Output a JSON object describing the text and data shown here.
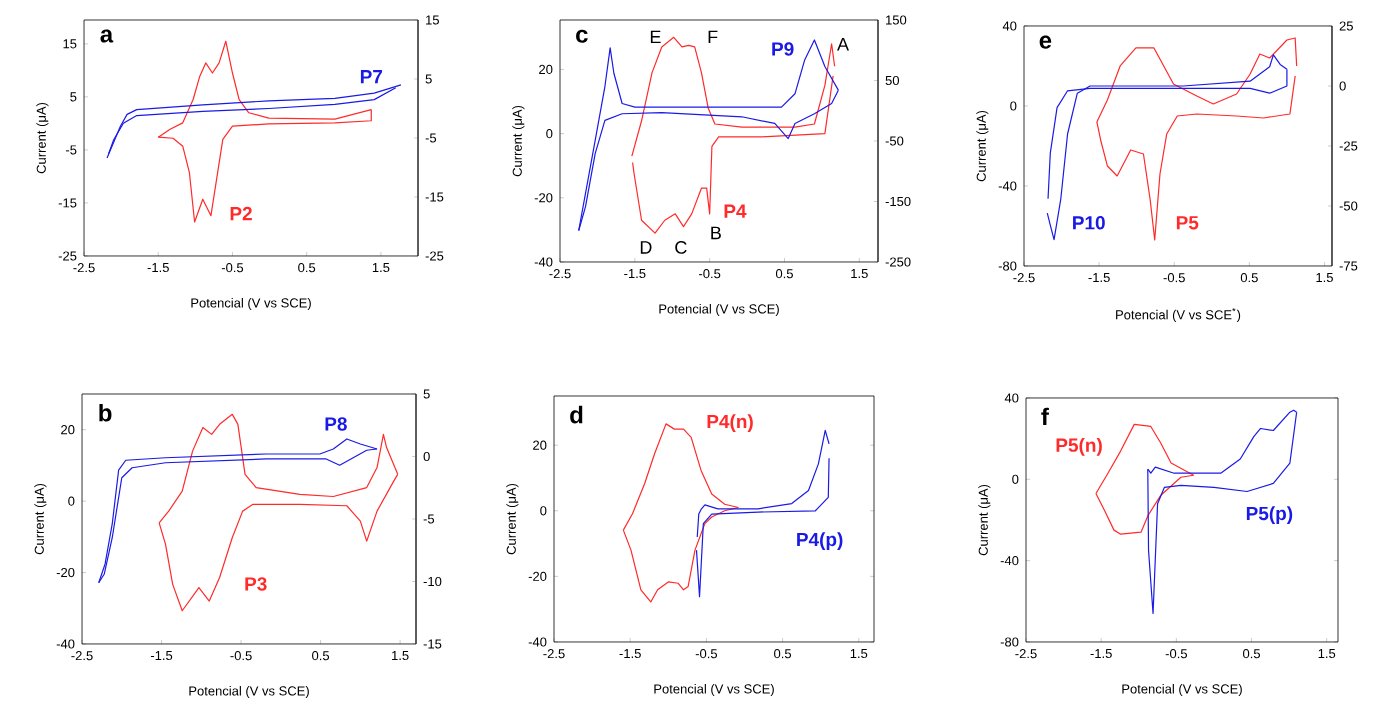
{
  "chart_data": [
    {
      "type": "line",
      "title": "a",
      "xlabel": "Potencial (V vs SCE)",
      "ylabel": "Current (μA)",
      "xlim": [
        -2.5,
        2.0
      ],
      "xticks": [
        -2.5,
        -1.5,
        -0.5,
        0.5,
        1.5
      ],
      "ylim": [
        -25,
        19.5
      ],
      "yticks": [
        -25,
        -15,
        -5,
        5,
        15
      ],
      "y2lim": [
        -25,
        15
      ],
      "y2ticks": [
        -25,
        -15,
        -5,
        5,
        15
      ],
      "series": [
        {
          "name": "P2",
          "color": "#ff2a2a",
          "x": [
            -1.5,
            -1.34,
            -1.17,
            -1.03,
            -0.94,
            -0.86,
            -0.77,
            -0.68,
            -0.59,
            -0.5,
            -0.41,
            -0.28,
            -0.01,
            0.88,
            1.37
          ],
          "values": [
            -2.6,
            -1.1,
            0.1,
            4.5,
            8.9,
            11.4,
            9.5,
            11.4,
            15.5,
            9.5,
            4.5,
            2.0,
            1.0,
            0.8,
            2.6
          ]
        },
        {
          "color": "#ff2a2a",
          "x": [
            1.37,
            1.37,
            0.88,
            -0.01,
            -0.5,
            -0.63,
            -0.7,
            -0.79,
            -0.9,
            -1.01,
            -1.08,
            -1.17,
            -1.3,
            -1.5
          ],
          "values": [
            2.6,
            0.5,
            0.1,
            -0.1,
            -0.5,
            -3,
            -9.3,
            -17.4,
            -14.3,
            -18.6,
            -9.3,
            -4.3,
            -2.8,
            -2.6
          ]
        },
        {
          "name": "P7",
          "color": "#1a1ae6",
          "axis": "y2",
          "x": [
            -2.19,
            -2.01,
            -1.92,
            -1.79,
            -0.9,
            -0.01,
            0.88,
            1.41,
            1.77
          ],
          "values": [
            -8.4,
            -3.0,
            -1.0,
            -0.2,
            0.6,
            1.3,
            1.7,
            2.6,
            4.0
          ]
        },
        {
          "color": "#1a1ae6",
          "axis": "y2",
          "x": [
            1.7,
            1.41,
            0.88,
            -0.01,
            -0.9,
            -1.79,
            -1.97,
            -2.1,
            -2.17
          ],
          "values": [
            3.5,
            1.5,
            0.7,
            0.0,
            -0.5,
            -1.2,
            -2.5,
            -5.3,
            -7.7
          ]
        }
      ]
    },
    {
      "type": "line",
      "title": "c",
      "xlabel": "Potencial (V vs SCE)",
      "ylabel": "Current (μA)",
      "xlim": [
        -2.5,
        1.75
      ],
      "xticks": [
        -2.5,
        -1.5,
        -0.5,
        0.5,
        1.5
      ],
      "ylim": [
        -40,
        35.4
      ],
      "yticks": [
        -40,
        -20,
        0,
        20
      ],
      "y2lim": [
        -250,
        150
      ],
      "y2ticks": [
        -250,
        -150,
        -50,
        50,
        150
      ],
      "annotations": [
        "A",
        "B",
        "C",
        "D",
        "E",
        "F"
      ],
      "series": [
        {
          "name": "P4",
          "color": "#ff2a2a",
          "x": [
            -1.54,
            -1.41,
            -1.27,
            -1.14,
            -0.98,
            -0.87,
            -0.78,
            -0.7,
            -0.61,
            -0.52,
            -0.43,
            -0.07,
            0.64,
            0.9,
            1.04,
            1.13,
            1.17
          ],
          "values": [
            -7,
            4,
            19,
            27,
            30,
            27,
            27.5,
            27,
            19,
            8,
            3,
            2,
            2,
            3,
            15,
            28,
            21
          ]
        },
        {
          "color": "#ff2a2a",
          "x": [
            1.15,
            1.04,
            0.19,
            -0.38,
            -0.47,
            -0.5,
            -0.54,
            -0.61,
            -0.74,
            -0.85,
            -0.96,
            -1.1,
            -1.23,
            -1.41,
            -1.51,
            -1.53
          ],
          "values": [
            18,
            0,
            -1,
            -1,
            -4,
            -25,
            -17,
            -17,
            -25,
            -29,
            -25,
            -27,
            -31,
            -27,
            -12.5,
            -9
          ]
        },
        {
          "name": "P9",
          "color": "#1a1ae6",
          "axis": "y2",
          "x": [
            -2.25,
            -2.16,
            -2.03,
            -1.9,
            -1.83,
            -1.78,
            -1.67,
            -1.5,
            -0.25,
            0.46,
            0.64,
            0.77,
            0.9,
            1.04,
            1.22
          ],
          "values": [
            -198,
            -137,
            -49,
            40,
            104,
            62,
            12,
            6,
            6,
            6,
            28,
            84,
            117,
            73,
            34
          ]
        },
        {
          "color": "#1a1ae6",
          "axis": "y2",
          "x": [
            1.22,
            1.13,
            0.9,
            0.64,
            0.55,
            0.37,
            -0.07,
            -1.14,
            -1.67,
            -1.9,
            -2.03,
            -2.16,
            -2.25
          ],
          "values": [
            34,
            12,
            -5,
            -21,
            -46,
            -21,
            -10,
            -3,
            -5,
            -16,
            -71,
            -159,
            -198
          ]
        }
      ]
    },
    {
      "type": "line",
      "title": "e",
      "xlabel": "Potencial (V vs SCE$^{*}$)",
      "ylabel": "Current (μA)",
      "xlim": [
        -2.5,
        1.6
      ],
      "xticks": [
        -2.5,
        -1.5,
        -0.5,
        0.5,
        1.5
      ],
      "ylim": [
        -80,
        40
      ],
      "yticks": [
        -80,
        -40,
        0,
        40
      ],
      "y2lim": [
        -75,
        25
      ],
      "y2ticks": [
        -75,
        -50,
        -25,
        0,
        25
      ],
      "series": [
        {
          "name": "P5",
          "color": "#ff2a2a",
          "x": [
            -1.53,
            -1.39,
            -1.22,
            -1.01,
            -0.77,
            -0.64,
            -0.51,
            -0.2,
            0.02,
            0.33,
            0.51,
            0.64,
            0.77,
            1.0,
            1.11,
            1.13
          ],
          "values": [
            -8,
            3,
            20,
            29,
            29,
            20,
            11,
            5,
            1,
            6,
            16,
            26,
            24,
            33,
            34,
            20
          ]
        },
        {
          "color": "#ff2a2a",
          "x": [
            1.11,
            1.04,
            0.69,
            0.33,
            -0.2,
            -0.46,
            -0.6,
            -0.69,
            -0.76,
            -0.82,
            -0.91,
            -1.08,
            -1.26,
            -1.39,
            -1.48,
            -1.53
          ],
          "values": [
            15,
            -4,
            -6,
            -5,
            -4,
            -5,
            -14,
            -34,
            -67,
            -47,
            -24,
            -22,
            -35,
            -30,
            -17,
            -8
          ]
        },
        {
          "name": "P10",
          "color": "#1a1ae6",
          "axis": "y2",
          "x": [
            -2.19,
            -2.15,
            -2.1,
            -2.01,
            -1.92,
            -1.79,
            -1.62,
            -0.38,
            0.51,
            0.77,
            0.82,
            0.91,
            1.0
          ],
          "values": [
            -53,
            -58,
            -64,
            -47,
            -20,
            -3,
            0,
            0,
            2,
            8,
            13,
            9,
            7
          ]
        },
        {
          "color": "#1a1ae6",
          "axis": "y2",
          "x": [
            1.0,
            1.0,
            0.77,
            0.51,
            -0.38,
            -1.62,
            -1.92,
            -2.06,
            -2.15,
            -2.18
          ],
          "values": [
            7,
            0,
            -3,
            -1,
            -1,
            -1,
            -2,
            -9,
            -28,
            -47
          ]
        }
      ]
    },
    {
      "type": "line",
      "title": "b",
      "xlabel": "Potencial (V vs SCE)",
      "ylabel": "Current (μA)",
      "xlim": [
        -2.5,
        1.7
      ],
      "xticks": [
        -2.5,
        -1.5,
        -0.5,
        0.5,
        1.5
      ],
      "ylim": [
        -40,
        30
      ],
      "yticks": [
        -40,
        -20,
        0,
        20
      ],
      "y2lim": [
        -15,
        5
      ],
      "y2ticks": [
        -15,
        -10,
        -5,
        0,
        5
      ],
      "series": [
        {
          "name": "P3",
          "color": "#ff2a2a",
          "x": [
            -1.53,
            -1.41,
            -1.24,
            -1.11,
            -0.98,
            -0.87,
            -0.77,
            -0.61,
            -0.54,
            -0.45,
            -0.31,
            0.24,
            0.66,
            1.08,
            1.21,
            1.29,
            1.33,
            1.47
          ],
          "values": [
            -6.1,
            -2.8,
            2.8,
            14,
            20.6,
            18.7,
            21.5,
            24.3,
            21.5,
            7.5,
            3.8,
            1.9,
            1.3,
            3.8,
            9.4,
            18.7,
            15,
            7.5
          ]
        },
        {
          "color": "#ff2a2a",
          "x": [
            1.47,
            1.42,
            1.21,
            1.08,
            1.0,
            0.83,
            0.24,
            -0.35,
            -0.48,
            -0.61,
            -0.77,
            -0.9,
            -1.03,
            -1.24,
            -1.36,
            -1.45,
            -1.53
          ],
          "values": [
            7.5,
            5.6,
            -2.8,
            -11.2,
            -5.6,
            -1.3,
            -0.9,
            -0.9,
            -2.8,
            -10.2,
            -21.4,
            -28,
            -24.2,
            -30.7,
            -23.3,
            -12.1,
            -6.1
          ]
        },
        {
          "name": "P8",
          "color": "#1a1ae6",
          "axis": "y2",
          "x": [
            -2.29,
            -2.21,
            -2.12,
            -2.04,
            -1.95,
            -1.45,
            -0.18,
            0.49,
            0.66,
            0.83,
            1.0,
            1.21
          ],
          "values": [
            -10.1,
            -8.6,
            -5.4,
            -1.1,
            -0.3,
            -0.1,
            0.2,
            0.2,
            0.6,
            1.4,
            1.0,
            0.6
          ]
        },
        {
          "color": "#1a1ae6",
          "axis": "y2",
          "x": [
            1.21,
            1.08,
            0.74,
            0.57,
            -0.18,
            -1.45,
            -1.87,
            -2.0,
            -2.12,
            -2.22,
            -2.29
          ],
          "values": [
            0.6,
            0.5,
            -0.7,
            -0.2,
            -0.2,
            -0.5,
            -0.9,
            -1.7,
            -6.5,
            -9.4,
            -10.1
          ]
        }
      ]
    },
    {
      "type": "line",
      "title": "d",
      "xlabel": "Potencial (V vs SCE)",
      "ylabel": "Current (μA)",
      "xlim": [
        -2.5,
        1.7
      ],
      "xticks": [
        -2.5,
        -1.5,
        -0.5,
        0.5,
        1.5
      ],
      "ylim": [
        -40,
        35
      ],
      "yticks": [
        -40,
        -20,
        0,
        20
      ],
      "series": [
        {
          "name": "P4(n)",
          "color": "#ff2a2a",
          "x": [
            -1.59,
            -1.47,
            -1.31,
            -1.18,
            -1.03,
            -0.92,
            -0.8,
            -0.7,
            -0.57,
            -0.43,
            -0.26,
            -0.08
          ],
          "values": [
            -5.9,
            -0.9,
            8.3,
            17.4,
            26.5,
            24.9,
            24.9,
            22.4,
            12.3,
            5.1,
            2.0,
            1.0
          ]
        },
        {
          "color": "#ff2a2a",
          "x": [
            -0.08,
            -0.26,
            -0.43,
            -0.52,
            -0.65,
            -0.74,
            -0.8,
            -0.87,
            -1.0,
            -1.14,
            -1.23,
            -1.36,
            -1.49,
            -1.59
          ],
          "values": [
            1.0,
            0,
            -1.9,
            -3.9,
            -12,
            -23.1,
            -24.1,
            -22.1,
            -21.7,
            -24.1,
            -27.8,
            -24.1,
            -12,
            -5.9
          ]
        },
        {
          "name": "P4(p)",
          "color": "#1a1ae6",
          "x": [
            -0.62,
            -0.6,
            -0.57,
            -0.52,
            -0.35,
            0.18,
            0.62,
            0.84,
            0.97,
            1.06,
            1.11
          ],
          "values": [
            -8,
            -1.0,
            0.4,
            1.8,
            0.6,
            0.6,
            2.2,
            6.2,
            14.3,
            24.5,
            20.4
          ]
        },
        {
          "color": "#1a1ae6",
          "x": [
            1.11,
            1.1,
            0.93,
            0.18,
            -0.43,
            -0.54,
            -0.59,
            -0.63
          ],
          "values": [
            16,
            4.1,
            0,
            -0.4,
            -1.0,
            -3.9,
            -26.2,
            -12
          ]
        }
      ]
    },
    {
      "type": "line",
      "title": "f",
      "xlabel": "Potencial (V vs SCE)",
      "ylabel": "Current (μA)",
      "xlim": [
        -2.5,
        1.65
      ],
      "xticks": [
        -2.5,
        -1.5,
        -0.5,
        0.5,
        1.5
      ],
      "ylim": [
        -80,
        40
      ],
      "yticks": [
        -80,
        -40,
        0,
        40
      ],
      "series": [
        {
          "name": "P5(n)",
          "color": "#ff2a2a",
          "x": [
            -1.57,
            -1.41,
            -1.24,
            -1.06,
            -0.84,
            -0.71,
            -0.57,
            -0.27
          ],
          "values": [
            -7,
            3,
            14,
            27,
            26,
            18,
            8,
            2
          ]
        },
        {
          "color": "#ff2a2a",
          "x": [
            -0.27,
            -0.44,
            -0.53,
            -0.71,
            -0.88,
            -0.97,
            -1.24,
            -1.33,
            -1.46,
            -1.57
          ],
          "values": [
            2,
            1,
            -2,
            -8,
            -18,
            -26,
            -27,
            -25,
            -15,
            -7
          ]
        },
        {
          "name": "P5(p)",
          "color": "#1a1ae6",
          "x": [
            -0.88,
            -0.84,
            -0.78,
            -0.53,
            0.09,
            0.35,
            0.53,
            0.62,
            0.79,
            1.01,
            1.06,
            1.1
          ],
          "values": [
            5,
            3,
            6,
            3,
            3,
            10,
            21,
            25,
            24,
            33,
            34,
            33
          ]
        },
        {
          "color": "#1a1ae6",
          "x": [
            1.1,
            1.01,
            0.79,
            0.44,
            0.0,
            -0.44,
            -0.66,
            -0.75,
            -0.81,
            -0.87,
            -0.88
          ],
          "values": [
            33,
            8,
            -2,
            -6,
            -4,
            -3,
            -4,
            -12,
            -66,
            -35,
            5
          ]
        }
      ]
    }
  ]
}
